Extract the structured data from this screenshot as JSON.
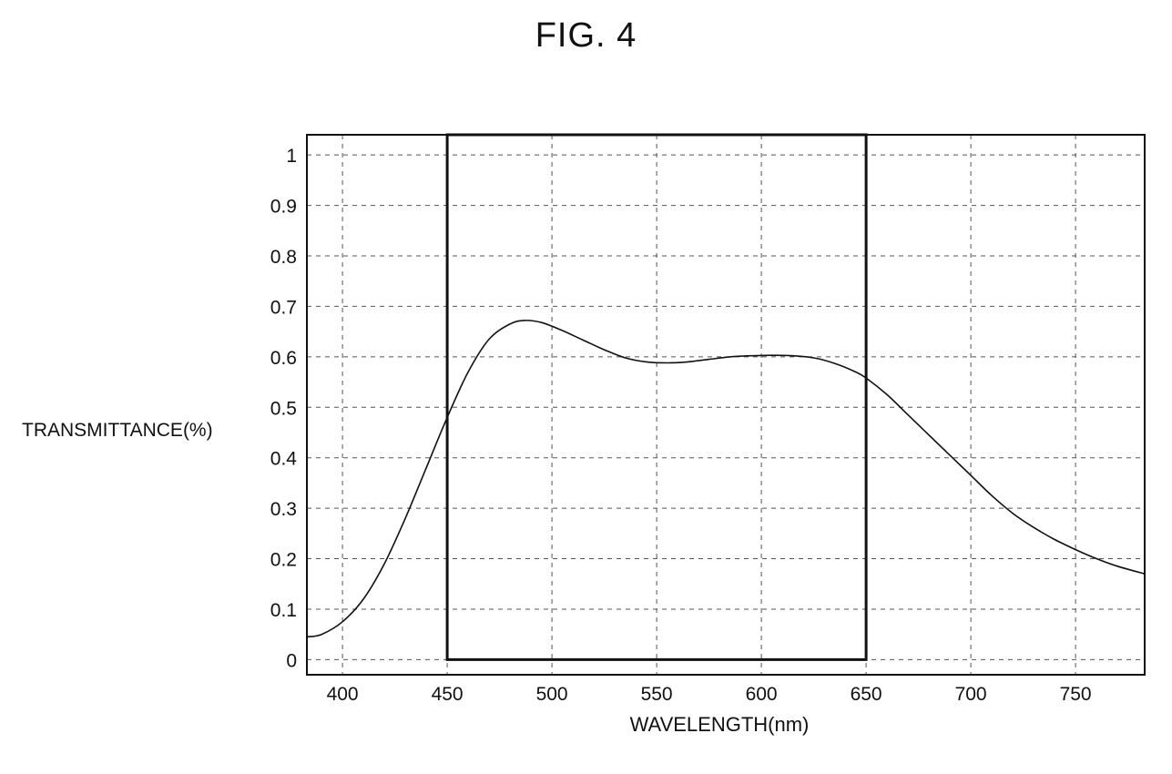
{
  "figure_label": "FIG. 4",
  "chart_data": {
    "type": "line",
    "title": "",
    "xlabel": "WAVELENGTH(nm)",
    "ylabel": "TRANSMITTANCE(%)",
    "xlim": [
      383,
      783
    ],
    "ylim": [
      -0.03,
      1.04
    ],
    "xticks": [
      400,
      450,
      500,
      550,
      600,
      650,
      700,
      750
    ],
    "yticks": [
      0,
      0.1,
      0.2,
      0.3,
      0.4,
      0.5,
      0.6,
      0.7,
      0.8,
      0.9,
      1
    ],
    "ytick_labels": [
      "0",
      "0.1",
      "0.2",
      "0.3",
      "0.4",
      "0.5",
      "0.6",
      "0.7",
      "0.8",
      "0.9",
      "1"
    ],
    "grid": true,
    "series": [
      {
        "style": "curve",
        "x": [
          383,
          390,
          400,
          410,
          420,
          430,
          440,
          450,
          460,
          470,
          480,
          487,
          495,
          505,
          515,
          525,
          535,
          545,
          555,
          565,
          575,
          585,
          595,
          605,
          615,
          625,
          635,
          645,
          650,
          660,
          670,
          680,
          690,
          700,
          710,
          720,
          730,
          740,
          750,
          760,
          770,
          783
        ],
        "y": [
          0.045,
          0.05,
          0.075,
          0.12,
          0.19,
          0.28,
          0.38,
          0.48,
          0.57,
          0.635,
          0.665,
          0.672,
          0.668,
          0.652,
          0.633,
          0.614,
          0.598,
          0.59,
          0.588,
          0.59,
          0.595,
          0.6,
          0.602,
          0.603,
          0.602,
          0.598,
          0.587,
          0.57,
          0.558,
          0.525,
          0.485,
          0.445,
          0.405,
          0.365,
          0.325,
          0.29,
          0.262,
          0.238,
          0.218,
          0.2,
          0.185,
          0.17
        ]
      },
      {
        "style": "rectangle",
        "x": [
          450,
          450,
          650,
          650
        ],
        "y": [
          0,
          1.04,
          1.04,
          0
        ]
      }
    ]
  }
}
